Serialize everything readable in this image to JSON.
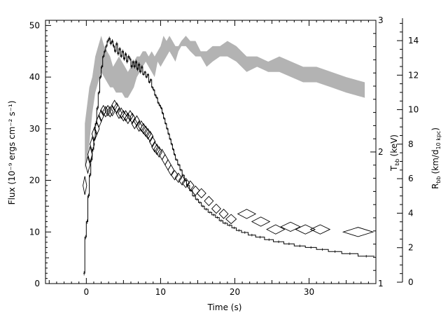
{
  "chart_data": {
    "type": "line",
    "xlabel": "Time (s)",
    "ylabel_left": "Flux (10⁻⁹ ergs cm⁻² s⁻¹)",
    "ylabel_right_inner": "T",
    "ylabel_right_inner_sub": "bb",
    "ylabel_right_inner_unit": "(keV)",
    "ylabel_right_outer": "R",
    "ylabel_right_outer_sub": "bb",
    "ylabel_right_outer_unit": "(km/d",
    "ylabel_right_outer_unit_sub": "10 kpc",
    "ylabel_right_outer_unit_end": ")",
    "xlim": [
      -5.5,
      39
    ],
    "ylim_left": [
      0,
      51
    ],
    "ylim_right_inner": [
      1,
      3
    ],
    "ylim_right_outer": [
      0,
      15.3
    ],
    "x_ticks": [
      0,
      10,
      20,
      30
    ],
    "y_left_ticks": [
      0,
      10,
      20,
      30,
      40,
      50
    ],
    "y_right_inner_ticks": [
      1,
      2,
      3
    ],
    "y_right_outer_ticks": [
      0,
      2,
      4,
      6,
      8,
      10,
      12,
      14
    ],
    "series": [
      {
        "style": "histogram",
        "steps": [
          [
            -0.4,
            2
          ],
          [
            -0.2,
            9
          ],
          [
            0,
            12
          ],
          [
            0.2,
            17
          ],
          [
            0.4,
            21
          ],
          [
            0.6,
            24
          ],
          [
            0.8,
            26
          ],
          [
            1,
            28
          ],
          [
            1.2,
            31
          ],
          [
            1.4,
            34
          ],
          [
            1.6,
            37
          ],
          [
            1.8,
            40
          ],
          [
            2,
            42
          ],
          [
            2.2,
            44
          ],
          [
            2.4,
            45
          ],
          [
            2.6,
            46
          ],
          [
            2.8,
            47
          ],
          [
            3,
            47.5
          ],
          [
            3.2,
            46.5
          ],
          [
            3.4,
            47
          ],
          [
            3.6,
            46
          ],
          [
            3.8,
            45
          ],
          [
            4,
            46.5
          ],
          [
            4.2,
            44.5
          ],
          [
            4.4,
            45.5
          ],
          [
            4.6,
            44
          ],
          [
            4.8,
            45
          ],
          [
            5,
            43.5
          ],
          [
            5.2,
            44.5
          ],
          [
            5.4,
            43
          ],
          [
            5.6,
            44
          ],
          [
            5.8,
            43.5
          ],
          [
            6,
            42
          ],
          [
            6.2,
            43
          ],
          [
            6.4,
            42
          ],
          [
            6.6,
            43
          ],
          [
            6.8,
            41.5
          ],
          [
            7,
            42.5
          ],
          [
            7.2,
            41
          ],
          [
            7.4,
            42
          ],
          [
            7.6,
            40.5
          ],
          [
            7.8,
            41
          ],
          [
            8,
            40
          ],
          [
            8.2,
            40.5
          ],
          [
            8.4,
            39
          ],
          [
            8.6,
            39.5
          ],
          [
            8.8,
            38
          ],
          [
            9,
            37.5
          ],
          [
            9.2,
            36.5
          ],
          [
            9.4,
            36
          ],
          [
            9.6,
            35
          ],
          [
            9.8,
            34.5
          ],
          [
            10,
            34
          ],
          [
            10.2,
            33
          ],
          [
            10.4,
            32
          ],
          [
            10.6,
            31
          ],
          [
            10.8,
            30
          ],
          [
            11,
            29
          ],
          [
            11.2,
            28
          ],
          [
            11.4,
            27
          ],
          [
            11.6,
            26
          ],
          [
            11.8,
            25
          ],
          [
            12,
            24
          ],
          [
            12.3,
            23
          ],
          [
            12.6,
            22
          ],
          [
            12.9,
            21
          ],
          [
            13.2,
            20
          ],
          [
            13.5,
            19
          ],
          [
            13.9,
            18
          ],
          [
            14.3,
            17
          ],
          [
            14.7,
            16.3
          ],
          [
            15.1,
            15.7
          ],
          [
            15.5,
            15
          ],
          [
            15.9,
            14.4
          ],
          [
            16.4,
            13.8
          ],
          [
            16.9,
            13.3
          ],
          [
            17.4,
            12.8
          ],
          [
            17.9,
            12.2
          ],
          [
            18.4,
            11.7
          ],
          [
            19,
            11.3
          ],
          [
            19.6,
            10.8
          ],
          [
            20.2,
            10.3
          ],
          [
            20.9,
            9.9
          ],
          [
            21.8,
            9.4
          ],
          [
            22.8,
            9
          ],
          [
            24,
            8.5
          ],
          [
            25.2,
            8.1
          ],
          [
            26.6,
            7.7
          ],
          [
            28,
            7.3
          ],
          [
            29.5,
            7
          ],
          [
            31,
            6.6
          ],
          [
            32.6,
            6.2
          ],
          [
            34.4,
            5.8
          ],
          [
            36.6,
            5.3
          ],
          [
            38.8,
            5.3
          ]
        ]
      },
      {
        "style": "diamonds",
        "points": [
          [
            -0.2,
            19,
            0.25,
            1.8
          ],
          [
            0.2,
            23,
            0.3,
            1.6
          ],
          [
            0.5,
            25,
            0.3,
            1.5
          ],
          [
            0.8,
            27,
            0.3,
            1.4
          ],
          [
            1.1,
            29,
            0.35,
            1.3
          ],
          [
            1.4,
            30,
            0.35,
            1.2
          ],
          [
            1.7,
            31.5,
            0.35,
            1.2
          ],
          [
            2.0,
            32.5,
            0.35,
            1.1
          ],
          [
            2.3,
            33.5,
            0.4,
            1.0
          ],
          [
            2.6,
            33.3,
            0.4,
            1.0
          ],
          [
            2.9,
            33.5,
            0.4,
            1.0
          ],
          [
            3.2,
            33.3,
            0.4,
            1.0
          ],
          [
            3.5,
            33.5,
            0.4,
            1.0
          ],
          [
            3.8,
            34.5,
            0.4,
            1.0
          ],
          [
            4.1,
            34.0,
            0.4,
            1.0
          ],
          [
            4.4,
            33.0,
            0.4,
            1.0
          ],
          [
            4.7,
            33.0,
            0.4,
            1.0
          ],
          [
            5.0,
            32.5,
            0.4,
            1.0
          ],
          [
            5.3,
            32.5,
            0.4,
            1.0
          ],
          [
            5.6,
            32.0,
            0.4,
            1.0
          ],
          [
            5.9,
            32.5,
            0.4,
            1.0
          ],
          [
            6.2,
            32.0,
            0.4,
            1.0
          ],
          [
            6.5,
            31.0,
            0.4,
            1.0
          ],
          [
            6.8,
            31.5,
            0.4,
            1.0
          ],
          [
            7.1,
            30.5,
            0.4,
            1.0
          ],
          [
            7.4,
            30.5,
            0.4,
            1.0
          ],
          [
            7.7,
            30.0,
            0.4,
            1.0
          ],
          [
            8.0,
            29.5,
            0.4,
            1.0
          ],
          [
            8.3,
            29.0,
            0.4,
            1.0
          ],
          [
            8.6,
            28.5,
            0.4,
            1.0
          ],
          [
            8.9,
            27.5,
            0.4,
            1.0
          ],
          [
            9.2,
            26.5,
            0.4,
            1.0
          ],
          [
            9.5,
            26.0,
            0.4,
            1.0
          ],
          [
            9.8,
            25.5,
            0.4,
            1.0
          ],
          [
            10.2,
            25.0,
            0.4,
            1.0
          ],
          [
            10.6,
            24.0,
            0.4,
            1.0
          ],
          [
            11.0,
            23.0,
            0.4,
            1.0
          ],
          [
            11.4,
            22.0,
            0.4,
            1.0
          ],
          [
            11.9,
            21.0,
            0.45,
            0.9
          ],
          [
            12.4,
            20.5,
            0.45,
            0.9
          ],
          [
            12.9,
            20.0,
            0.45,
            0.9
          ],
          [
            13.4,
            19.5,
            0.5,
            0.9
          ],
          [
            14.0,
            19.0,
            0.5,
            0.9
          ],
          [
            14.7,
            18.0,
            0.55,
            0.9
          ],
          [
            15.5,
            17.5,
            0.6,
            0.9
          ],
          [
            16.5,
            16.0,
            0.6,
            0.9
          ],
          [
            17.5,
            14.5,
            0.6,
            0.9
          ],
          [
            18.5,
            13.5,
            0.6,
            0.9
          ],
          [
            19.5,
            12.5,
            0.7,
            0.9
          ],
          [
            21.6,
            13.5,
            1.2,
            0.9
          ],
          [
            23.5,
            12.0,
            1.2,
            0.9
          ],
          [
            25.5,
            10.5,
            1.2,
            0.9
          ],
          [
            27.5,
            11.0,
            1.3,
            0.9
          ],
          [
            29.5,
            10.5,
            1.3,
            0.9
          ],
          [
            31.5,
            10.5,
            1.3,
            0.9
          ],
          [
            36.6,
            10.0,
            2.0,
            0.9
          ]
        ]
      },
      {
        "style": "band",
        "x": [
          -0.2,
          0.4,
          0.8,
          1.2,
          1.6,
          2,
          2.4,
          2.8,
          3.2,
          3.6,
          4,
          4.4,
          4.8,
          5.2,
          5.6,
          6,
          6.4,
          6.8,
          7.2,
          7.6,
          8,
          8.4,
          8.8,
          9.2,
          9.6,
          10,
          10.4,
          10.8,
          11.2,
          11.6,
          12,
          12.4,
          12.8,
          13.4,
          14,
          14.7,
          15.4,
          16.2,
          17,
          18,
          19,
          20.2,
          21.6,
          23,
          24.5,
          26,
          27.6,
          29.2,
          31,
          33,
          35,
          37.5
        ],
        "upper": [
          31,
          38,
          40,
          44,
          46,
          48,
          46,
          45,
          44,
          42,
          43,
          44,
          43,
          42,
          41,
          42,
          43,
          44,
          44,
          45,
          45,
          44,
          45,
          44,
          45,
          46,
          48,
          47,
          48,
          47,
          46,
          46,
          47,
          48,
          47,
          47,
          45,
          45,
          46,
          46,
          47,
          46,
          44,
          44,
          43,
          44,
          43,
          42,
          42,
          41,
          40,
          39
        ],
        "lower": [
          22,
          27,
          33,
          37,
          39,
          41,
          40,
          39,
          38,
          38,
          37,
          37,
          37,
          36,
          36,
          37,
          38,
          40,
          41,
          42,
          43,
          42,
          41,
          40,
          43,
          42,
          43,
          44,
          45,
          44,
          43,
          45,
          46,
          46,
          45,
          44,
          44,
          42,
          43,
          44,
          44,
          43,
          41,
          42,
          41,
          41,
          40,
          39,
          39,
          38,
          37,
          36
        ]
      }
    ]
  }
}
